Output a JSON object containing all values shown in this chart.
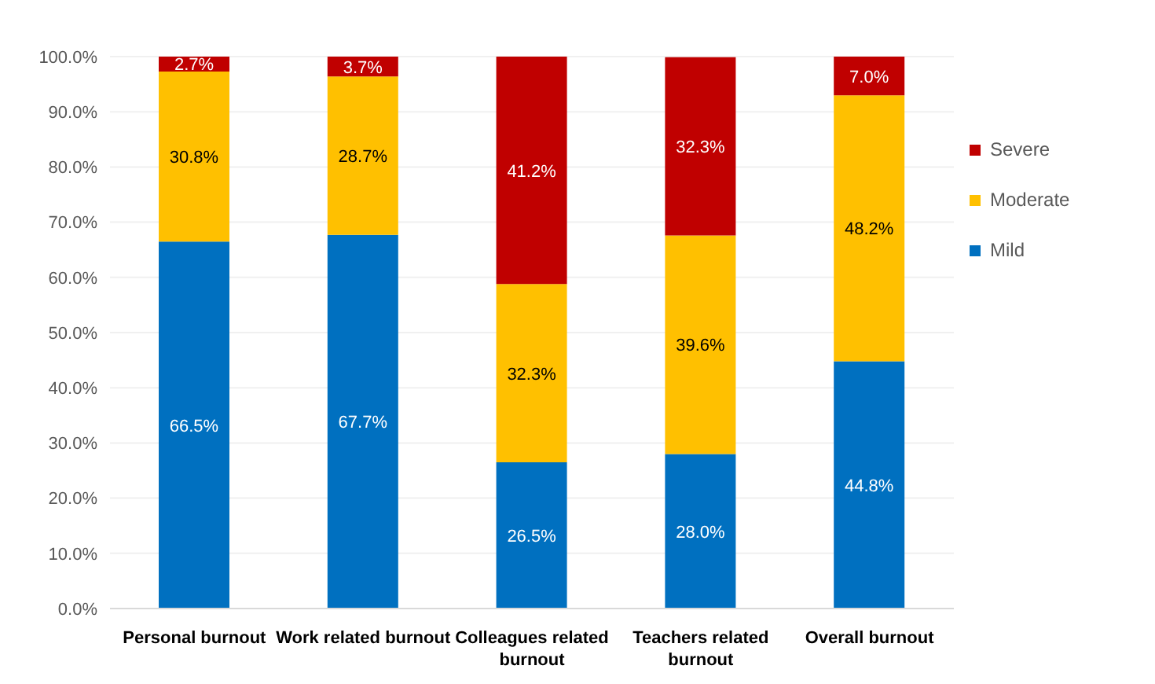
{
  "chart_data": {
    "type": "bar",
    "stacked": true,
    "categories": [
      "Personal burnout",
      "Work related burnout",
      "Colleagues related burnout",
      "Teachers related burnout",
      "Overall burnout"
    ],
    "series": [
      {
        "name": "Mild",
        "color": "#0070c0",
        "values": [
          66.5,
          67.7,
          26.5,
          28.0,
          44.8
        ],
        "value_labels": [
          "66.5%",
          "67.7%",
          "26.5%",
          "28.0%",
          "44.8%"
        ]
      },
      {
        "name": "Moderate",
        "color": "#ffc000",
        "values": [
          30.8,
          28.7,
          32.3,
          39.6,
          48.2
        ],
        "value_labels": [
          "30.8%",
          "28.7%",
          "32.3%",
          "39.6%",
          "48.2%"
        ]
      },
      {
        "name": "Severe",
        "color": "#c00000",
        "values": [
          2.7,
          3.7,
          41.2,
          32.3,
          7.0
        ],
        "value_labels": [
          "2.7%",
          "3.7%",
          "41.2%",
          "32.3%",
          "7.0%"
        ]
      }
    ],
    "ylim": [
      0,
      100
    ],
    "yticks": [
      {
        "value": 0,
        "label": "0.0%"
      },
      {
        "value": 10,
        "label": "10.0%"
      },
      {
        "value": 20,
        "label": "20.0%"
      },
      {
        "value": 30,
        "label": "30.0%"
      },
      {
        "value": 40,
        "label": "40.0%"
      },
      {
        "value": 50,
        "label": "50.0%"
      },
      {
        "value": 60,
        "label": "60.0%"
      },
      {
        "value": 70,
        "label": "70.0%"
      },
      {
        "value": 80,
        "label": "80.0%"
      },
      {
        "value": 90,
        "label": "90.0%"
      },
      {
        "value": 100,
        "label": "100.0%"
      }
    ],
    "grid": "y",
    "legend": "right"
  }
}
